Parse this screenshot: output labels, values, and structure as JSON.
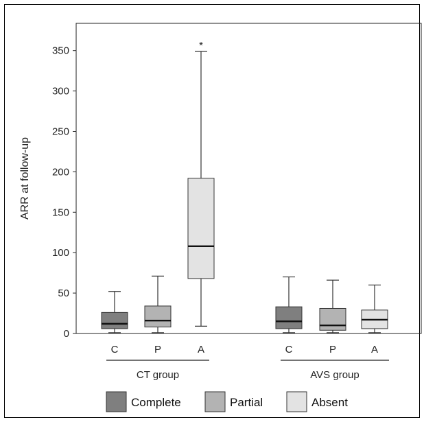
{
  "chart_data": {
    "type": "boxplot",
    "ylabel": "ARR at follow-up",
    "ylim": [
      0,
      380
    ],
    "yticks": [
      0,
      50,
      100,
      150,
      200,
      250,
      300,
      350
    ],
    "grid": false,
    "groups": [
      {
        "name": "CT group",
        "boxes": [
          {
            "category": "C",
            "series": "Complete",
            "min": 1,
            "q1": 6,
            "median": 12,
            "q3": 26,
            "max": 52
          },
          {
            "category": "P",
            "series": "Partial",
            "min": 1,
            "q1": 8,
            "median": 16,
            "q3": 34,
            "max": 71
          },
          {
            "category": "A",
            "series": "Absent",
            "min": 9,
            "q1": 68,
            "median": 108,
            "q3": 192,
            "max": 349,
            "annotation": "*"
          }
        ]
      },
      {
        "name": "AVS group",
        "boxes": [
          {
            "category": "C",
            "series": "Complete",
            "min": 1,
            "q1": 6,
            "median": 15,
            "q3": 33,
            "max": 70
          },
          {
            "category": "P",
            "series": "Partial",
            "min": 1,
            "q1": 4,
            "median": 10,
            "q3": 31,
            "max": 66
          },
          {
            "category": "A",
            "series": "Absent",
            "min": 1,
            "q1": 6,
            "median": 17,
            "q3": 29,
            "max": 60
          }
        ]
      }
    ],
    "legend": {
      "position": "bottom",
      "items": [
        {
          "label": "Complete",
          "color": "#7f7f7f"
        },
        {
          "label": "Partial",
          "color": "#b3b3b3"
        },
        {
          "label": "Absent",
          "color": "#e3e3e3"
        }
      ]
    }
  }
}
